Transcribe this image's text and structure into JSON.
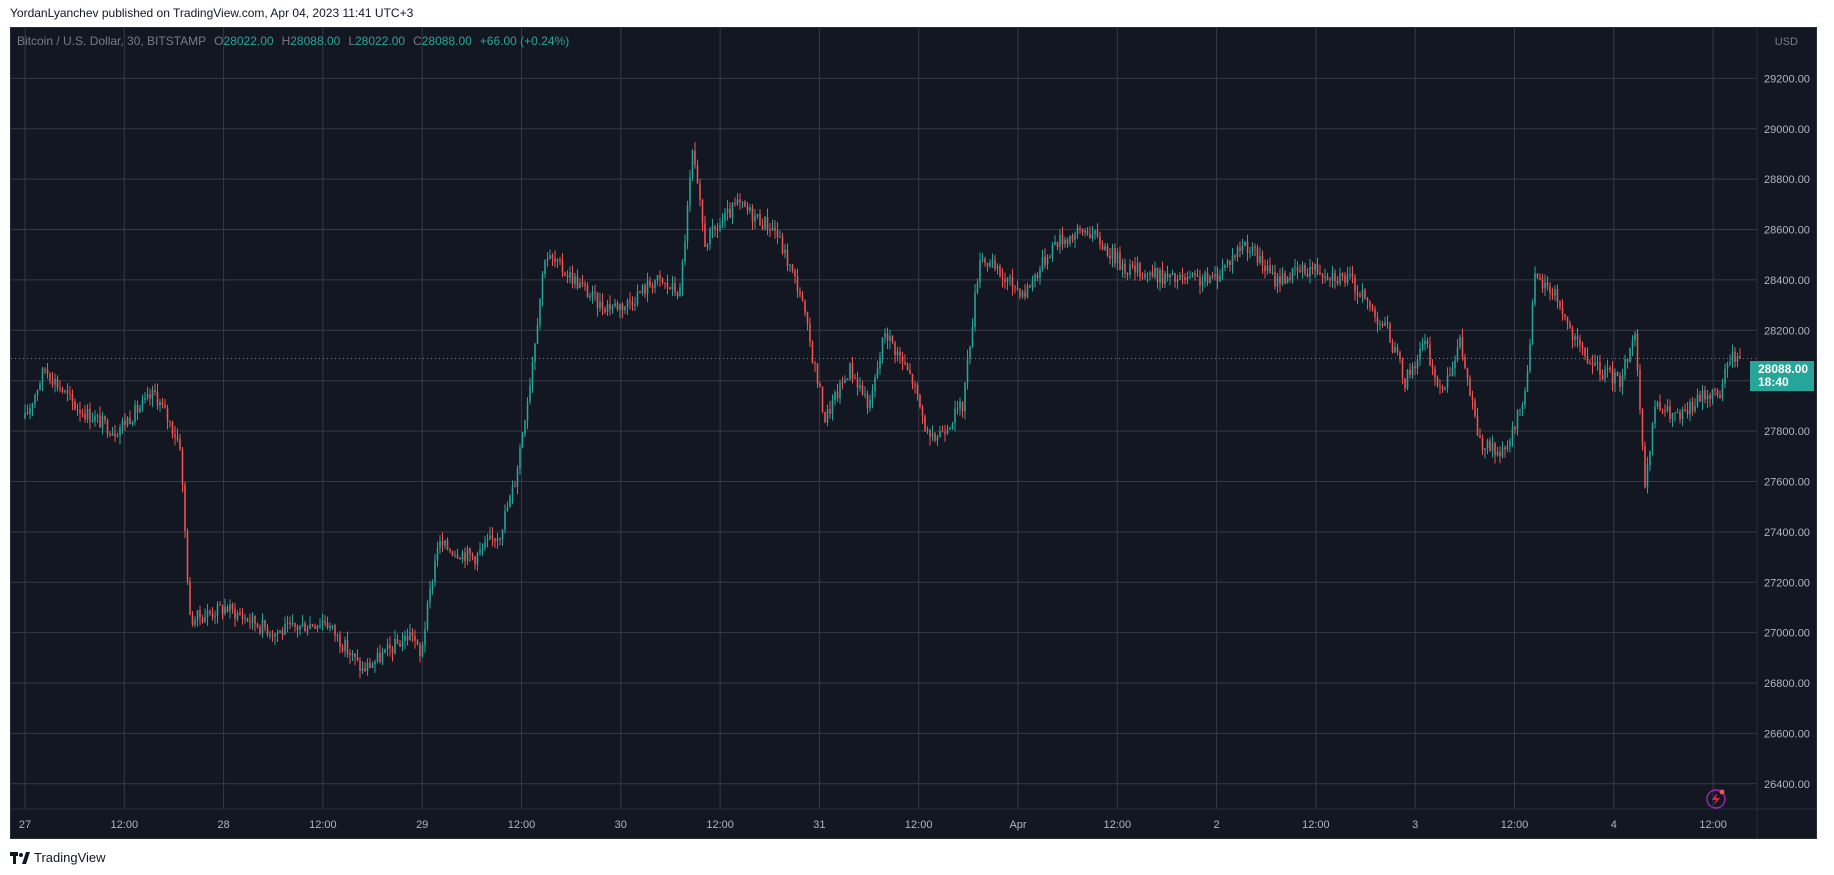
{
  "header": {
    "publish_text": "YordanLyanchev published on TradingView.com, Apr 04, 2023 11:41 UTC+3"
  },
  "legend": {
    "symbol": "Bitcoin / U.S. Dollar, 30, BITSTAMP",
    "o_label": "O",
    "o_value": "28022.00",
    "h_label": "H",
    "h_value": "28088.00",
    "l_label": "L",
    "l_value": "28022.00",
    "c_label": "C",
    "c_value": "28088.00",
    "change": "+66.00 (+0.24%)"
  },
  "price_axis": {
    "currency": "USD",
    "last_price": "28088.00",
    "countdown": "18:40"
  },
  "footer": {
    "brand": "TradingView"
  },
  "colors": {
    "background": "#131722",
    "grid": "#363a45",
    "up": "#26a69a",
    "down": "#ef5350",
    "axis_text": "#b2b5be",
    "accent_icon": "#9c27b0"
  },
  "chart_data": {
    "type": "candlestick",
    "symbol": "Bitcoin / U.S. Dollar",
    "interval": "30",
    "exchange": "BITSTAMP",
    "ylim": [
      26300,
      29400
    ],
    "y_ticks": [
      26400,
      26600,
      26800,
      27000,
      27200,
      27400,
      27600,
      27800,
      28000,
      28200,
      28400,
      28600,
      28800,
      29000,
      29200
    ],
    "y_tick_labels": [
      "26400.00",
      "26600.00",
      "26800.00",
      "27000.00",
      "27200.00",
      "27400.00",
      "27600.00",
      "27800.00",
      "28000.00",
      "28200.00",
      "28400.00",
      "28600.00",
      "28800.00",
      "29000.00",
      "29200.00"
    ],
    "x_tick_labels": [
      "27",
      "12:00",
      "28",
      "12:00",
      "29",
      "12:00",
      "30",
      "12:00",
      "31",
      "12:00",
      "Apr",
      "12:00",
      "2",
      "12:00",
      "3",
      "12:00",
      "4",
      "12:00"
    ],
    "grid": true,
    "last_price": 28088,
    "path_keypoints": [
      {
        "i": 0,
        "p": 27850
      },
      {
        "i": 8,
        "p": 28050
      },
      {
        "i": 20,
        "p": 27900
      },
      {
        "i": 36,
        "p": 27800
      },
      {
        "i": 52,
        "p": 27950
      },
      {
        "i": 62,
        "p": 27750
      },
      {
        "i": 66,
        "p": 27050
      },
      {
        "i": 80,
        "p": 27100
      },
      {
        "i": 100,
        "p": 27000
      },
      {
        "i": 120,
        "p": 27050
      },
      {
        "i": 135,
        "p": 26850
      },
      {
        "i": 155,
        "p": 27000
      },
      {
        "i": 158,
        "p": 26900
      },
      {
        "i": 165,
        "p": 27350
      },
      {
        "i": 180,
        "p": 27300
      },
      {
        "i": 190,
        "p": 27400
      },
      {
        "i": 196,
        "p": 27600
      },
      {
        "i": 202,
        "p": 28000
      },
      {
        "i": 208,
        "p": 28500
      },
      {
        "i": 220,
        "p": 28400
      },
      {
        "i": 230,
        "p": 28300
      },
      {
        "i": 240,
        "p": 28300
      },
      {
        "i": 252,
        "p": 28400
      },
      {
        "i": 262,
        "p": 28350
      },
      {
        "i": 267,
        "p": 28900
      },
      {
        "i": 272,
        "p": 28550
      },
      {
        "i": 285,
        "p": 28700
      },
      {
        "i": 300,
        "p": 28600
      },
      {
        "i": 310,
        "p": 28350
      },
      {
        "i": 320,
        "p": 27850
      },
      {
        "i": 330,
        "p": 28050
      },
      {
        "i": 338,
        "p": 27900
      },
      {
        "i": 344,
        "p": 28200
      },
      {
        "i": 355,
        "p": 28000
      },
      {
        "i": 362,
        "p": 27750
      },
      {
        "i": 375,
        "p": 27900
      },
      {
        "i": 382,
        "p": 28500
      },
      {
        "i": 392,
        "p": 28400
      },
      {
        "i": 400,
        "p": 28350
      },
      {
        "i": 412,
        "p": 28550
      },
      {
        "i": 425,
        "p": 28600
      },
      {
        "i": 440,
        "p": 28450
      },
      {
        "i": 460,
        "p": 28400
      },
      {
        "i": 475,
        "p": 28400
      },
      {
        "i": 488,
        "p": 28550
      },
      {
        "i": 500,
        "p": 28400
      },
      {
        "i": 515,
        "p": 28450
      },
      {
        "i": 530,
        "p": 28400
      },
      {
        "i": 545,
        "p": 28200
      },
      {
        "i": 552,
        "p": 28000
      },
      {
        "i": 560,
        "p": 28150
      },
      {
        "i": 566,
        "p": 27950
      },
      {
        "i": 574,
        "p": 28150
      },
      {
        "i": 582,
        "p": 27750
      },
      {
        "i": 592,
        "p": 27700
      },
      {
        "i": 600,
        "p": 27950
      },
      {
        "i": 604,
        "p": 28400
      },
      {
        "i": 612,
        "p": 28350
      },
      {
        "i": 620,
        "p": 28150
      },
      {
        "i": 628,
        "p": 28050
      },
      {
        "i": 638,
        "p": 28000
      },
      {
        "i": 644,
        "p": 28200
      },
      {
        "i": 648,
        "p": 27550
      },
      {
        "i": 652,
        "p": 27900
      },
      {
        "i": 662,
        "p": 27850
      },
      {
        "i": 672,
        "p": 27950
      },
      {
        "i": 678,
        "p": 27950
      },
      {
        "i": 682,
        "p": 28100
      },
      {
        "i": 686,
        "p": 28088
      }
    ]
  }
}
